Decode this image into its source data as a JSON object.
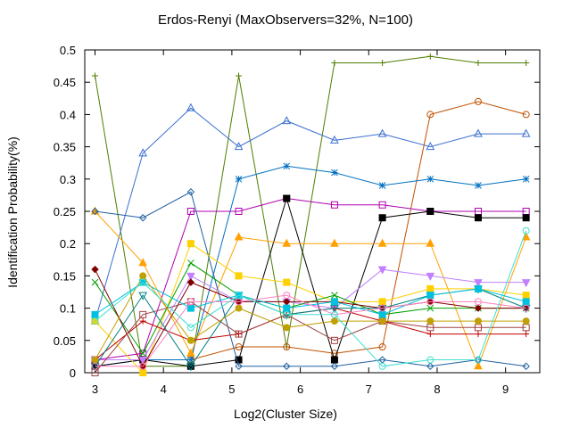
{
  "chart_data": {
    "type": "line",
    "title": "Erdos-Renyi (MaxObservers=32%, N=100)",
    "xlabel": "Log2(Cluster Size)",
    "ylabel": "Identification Probability(%)",
    "xlim": [
      2.85,
      9.5
    ],
    "ylim": [
      0,
      0.5
    ],
    "x_ticks": [
      "3",
      "4",
      "5",
      "6",
      "7",
      "8",
      "9"
    ],
    "y_ticks": [
      "0",
      "0.05",
      "0.1",
      "0.15",
      "0.2",
      "0.25",
      "0.3",
      "0.35",
      "0.4",
      "0.45",
      "0.5"
    ],
    "x": [
      3,
      3.7,
      4.4,
      5.1,
      5.8,
      6.5,
      7.2,
      7.9,
      8.6,
      9.3
    ],
    "grid": false,
    "legend": "none",
    "series": [
      {
        "color": "#4f7d00",
        "marker": "plus",
        "values": [
          0.46,
          0.01,
          0.01,
          0.46,
          0.04,
          0.48,
          0.48,
          0.49,
          0.48,
          0.48
        ]
      },
      {
        "color": "#3a6fd0",
        "marker": "triangle",
        "values": [
          0.08,
          0.34,
          0.41,
          0.35,
          0.39,
          0.36,
          0.37,
          0.35,
          0.37,
          0.37
        ]
      },
      {
        "color": "#c05000",
        "marker": "circle",
        "values": [
          0.02,
          0.02,
          0.02,
          0.04,
          0.04,
          0.03,
          0.04,
          0.4,
          0.42,
          0.4
        ]
      },
      {
        "color": "#0070c0",
        "marker": "star",
        "values": [
          0.01,
          0.02,
          0.02,
          0.3,
          0.32,
          0.31,
          0.29,
          0.3,
          0.29,
          0.3
        ]
      },
      {
        "color": "#b000b0",
        "marker": "square",
        "values": [
          0.02,
          0.03,
          0.25,
          0.25,
          0.27,
          0.26,
          0.26,
          0.25,
          0.25,
          0.25
        ]
      },
      {
        "color": "#000000",
        "marker": "filled-square",
        "values": [
          0.01,
          0.02,
          0.01,
          0.02,
          0.27,
          0.02,
          0.24,
          0.25,
          0.24,
          0.24
        ]
      },
      {
        "color": "#ffa000",
        "marker": "filled-triangle",
        "values": [
          0.25,
          0.17,
          0.03,
          0.21,
          0.2,
          0.2,
          0.2,
          0.2,
          0.01,
          0.21
        ]
      },
      {
        "color": "#2060a0",
        "marker": "diamond",
        "values": [
          0.25,
          0.24,
          0.28,
          0.01,
          0.01,
          0.01,
          0.02,
          0.01,
          0.02,
          0.01
        ]
      },
      {
        "color": "#ffd000",
        "marker": "filled-square",
        "values": [
          0.08,
          0.0,
          0.2,
          0.15,
          0.14,
          0.11,
          0.11,
          0.13,
          0.13,
          0.12
        ]
      },
      {
        "color": "#c080ff",
        "marker": "filled-triangle-down",
        "values": [
          0.02,
          0.02,
          0.15,
          0.11,
          0.11,
          0.1,
          0.16,
          0.15,
          0.14,
          0.14
        ]
      },
      {
        "color": "#00a000",
        "marker": "x",
        "values": [
          0.14,
          0.03,
          0.17,
          0.12,
          0.1,
          0.12,
          0.09,
          0.1,
          0.1,
          0.1
        ]
      },
      {
        "color": "#800000",
        "marker": "filled-diamond",
        "values": [
          0.16,
          0.01,
          0.14,
          0.11,
          0.11,
          0.11,
          0.1,
          0.11,
          0.1,
          0.1
        ]
      },
      {
        "color": "#c00000",
        "marker": "plus",
        "values": [
          0.02,
          0.08,
          0.05,
          0.06,
          0.09,
          0.1,
          0.08,
          0.06,
          0.06,
          0.06
        ]
      },
      {
        "color": "#a04040",
        "marker": "square",
        "values": [
          0.0,
          0.09,
          0.11,
          0.06,
          0.09,
          0.05,
          0.08,
          0.07,
          0.07,
          0.07
        ]
      },
      {
        "color": "#008080",
        "marker": "triangle-down",
        "values": [
          0.01,
          0.12,
          0.01,
          0.12,
          0.09,
          0.1,
          0.1,
          0.12,
          0.13,
          0.1
        ]
      },
      {
        "color": "#00c0e0",
        "marker": "filled-square",
        "values": [
          0.09,
          0.14,
          0.1,
          0.12,
          0.1,
          0.11,
          0.09,
          0.12,
          0.13,
          0.11
        ]
      },
      {
        "color": "#c0a000",
        "marker": "filled-circle",
        "values": [
          0.02,
          0.15,
          0.05,
          0.1,
          0.07,
          0.08,
          0.08,
          0.08,
          0.08,
          0.08
        ]
      },
      {
        "color": "#ff80c0",
        "marker": "circle",
        "values": [
          0.01,
          0.01,
          0.11,
          0.11,
          0.12,
          0.09,
          0.1,
          0.11,
          0.11,
          0.1
        ]
      },
      {
        "color": "#40e0d0",
        "marker": "circle",
        "values": [
          0.08,
          0.14,
          0.07,
          0.12,
          0.09,
          0.09,
          0.01,
          0.02,
          0.02,
          0.22
        ]
      }
    ]
  }
}
